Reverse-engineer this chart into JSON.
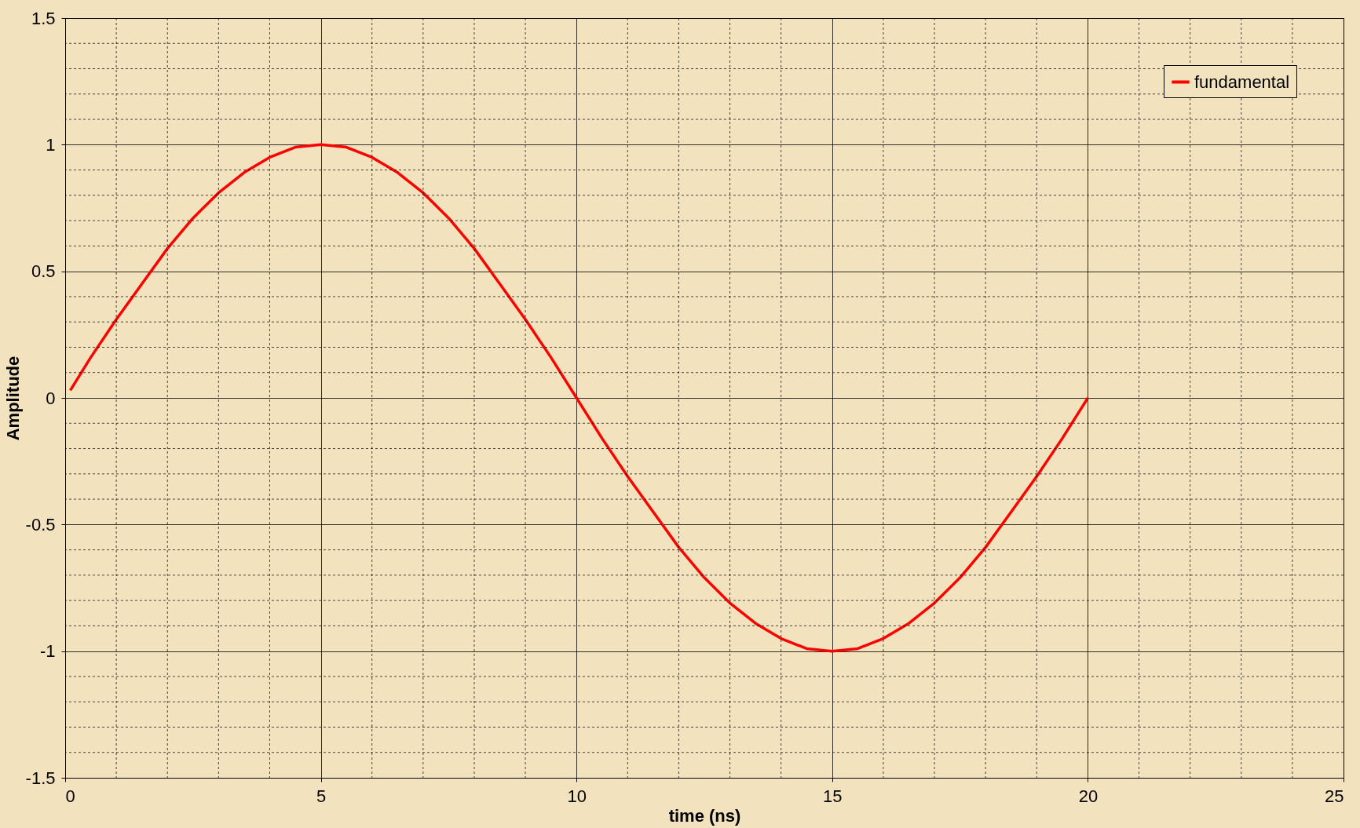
{
  "chart_data": {
    "type": "line",
    "xlabel": "time (ns)",
    "ylabel": "Amplitude",
    "x": [
      0.1,
      0.5,
      1,
      1.5,
      2,
      2.5,
      3,
      3.5,
      4,
      4.5,
      5,
      5.5,
      6,
      6.5,
      7,
      7.5,
      8,
      8.5,
      9,
      9.5,
      10,
      10.5,
      11,
      11.5,
      12,
      12.5,
      13,
      13.5,
      14,
      14.5,
      15,
      15.5,
      16,
      16.5,
      17,
      17.5,
      18,
      18.5,
      19,
      19.5,
      20
    ],
    "series": [
      {
        "name": "fundamental",
        "color": "#ff0000",
        "values": [
          0.03,
          0.16,
          0.31,
          0.45,
          0.59,
          0.71,
          0.81,
          0.89,
          0.95,
          0.99,
          1,
          0.99,
          0.95,
          0.89,
          0.81,
          0.71,
          0.59,
          0.45,
          0.31,
          0.16,
          0,
          -0.16,
          -0.31,
          -0.45,
          -0.59,
          -0.71,
          -0.81,
          -0.89,
          -0.95,
          -0.99,
          -1,
          -0.99,
          -0.95,
          -0.89,
          -0.81,
          -0.71,
          -0.59,
          -0.45,
          -0.31,
          -0.16,
          0
        ]
      }
    ],
    "xlim": [
      0,
      25
    ],
    "xticks": [
      0,
      {
        "value": 1,
        "label": null
      },
      {
        "value": 2,
        "label": null
      },
      {
        "value": 3,
        "label": null
      },
      {
        "value": 4,
        "label": null
      },
      5,
      {
        "value": 6,
        "label": null
      },
      {
        "value": 7,
        "label": null
      },
      {
        "value": 8,
        "label": null
      },
      {
        "value": 9,
        "label": null
      },
      10,
      {
        "value": 11,
        "label": null
      },
      {
        "value": 12,
        "label": null
      },
      {
        "value": 13,
        "label": null
      },
      {
        "value": 14,
        "label": null
      },
      15,
      {
        "value": 16,
        "label": null
      },
      {
        "value": 17,
        "label": null
      },
      {
        "value": 18,
        "label": null
      },
      {
        "value": 19,
        "label": null
      },
      20,
      {
        "value": 21,
        "label": null
      },
      {
        "value": 22,
        "label": null
      },
      {
        "value": 23,
        "label": null
      },
      {
        "value": 24,
        "label": null
      },
      25
    ],
    "ylim": [
      -1.5,
      1.5
    ],
    "yticks": [
      -1.5,
      {
        "value": -1.4,
        "label": null
      },
      {
        "value": -1.3,
        "label": null
      },
      {
        "value": -1.2,
        "label": null
      },
      {
        "value": -1.1,
        "label": null
      },
      -1,
      {
        "value": -0.9,
        "label": null
      },
      {
        "value": -0.8,
        "label": null
      },
      {
        "value": -0.7,
        "label": null
      },
      {
        "value": -0.6,
        "label": null
      },
      -0.5,
      {
        "value": -0.4,
        "label": null
      },
      {
        "value": -0.3,
        "label": null
      },
      {
        "value": -0.2,
        "label": null
      },
      {
        "value": -0.1,
        "label": null
      },
      0,
      {
        "value": 0.1,
        "label": null
      },
      {
        "value": 0.2,
        "label": null
      },
      {
        "value": 0.3,
        "label": null
      },
      {
        "value": 0.4,
        "label": null
      },
      0.5,
      {
        "value": 0.6,
        "label": null
      },
      {
        "value": 0.7,
        "label": null
      },
      {
        "value": 0.8,
        "label": null
      },
      {
        "value": 0.9,
        "label": null
      },
      1,
      {
        "value": 1.1,
        "label": null
      },
      {
        "value": 1.2,
        "label": null
      },
      {
        "value": 1.3,
        "label": null
      },
      {
        "value": 1.4,
        "label": null
      },
      1.5
    ],
    "grid": true,
    "legend": "top right",
    "marker": "none",
    "line_style": "solid"
  }
}
